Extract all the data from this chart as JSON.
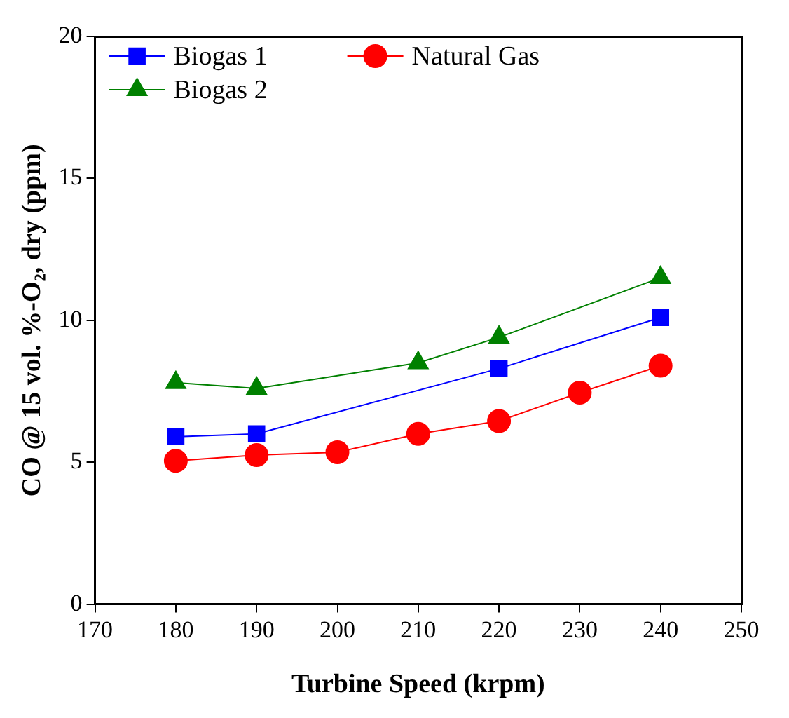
{
  "chart_data": {
    "type": "line",
    "xlabel": "Turbine Speed (krpm)",
    "ylabel": "CO @ 15 vol. %-O₂, dry (ppm)",
    "xlim": [
      170,
      250
    ],
    "xticks": [
      170,
      180,
      190,
      200,
      210,
      220,
      230,
      240,
      250
    ],
    "ylim": [
      0,
      20
    ],
    "yticks": [
      0,
      5,
      10,
      15,
      20
    ],
    "grid": false,
    "legend": "top left",
    "series": [
      {
        "name": "Biogas 1",
        "color": "#0000ff",
        "marker": "square",
        "x": [
          180,
          190,
          220,
          240
        ],
        "values": [
          5.9,
          6.0,
          8.3,
          10.1
        ]
      },
      {
        "name": "Biogas 2",
        "color": "#008000",
        "marker": "triangle",
        "x": [
          180,
          190,
          210,
          220,
          240
        ],
        "values": [
          7.8,
          7.6,
          8.5,
          9.4,
          11.5
        ]
      },
      {
        "name": "Natural Gas",
        "color": "#ff0000",
        "marker": "circle",
        "x": [
          180,
          190,
          200,
          210,
          220,
          230,
          240
        ],
        "values": [
          5.05,
          5.25,
          5.35,
          6.0,
          6.45,
          7.45,
          8.4
        ]
      }
    ]
  }
}
